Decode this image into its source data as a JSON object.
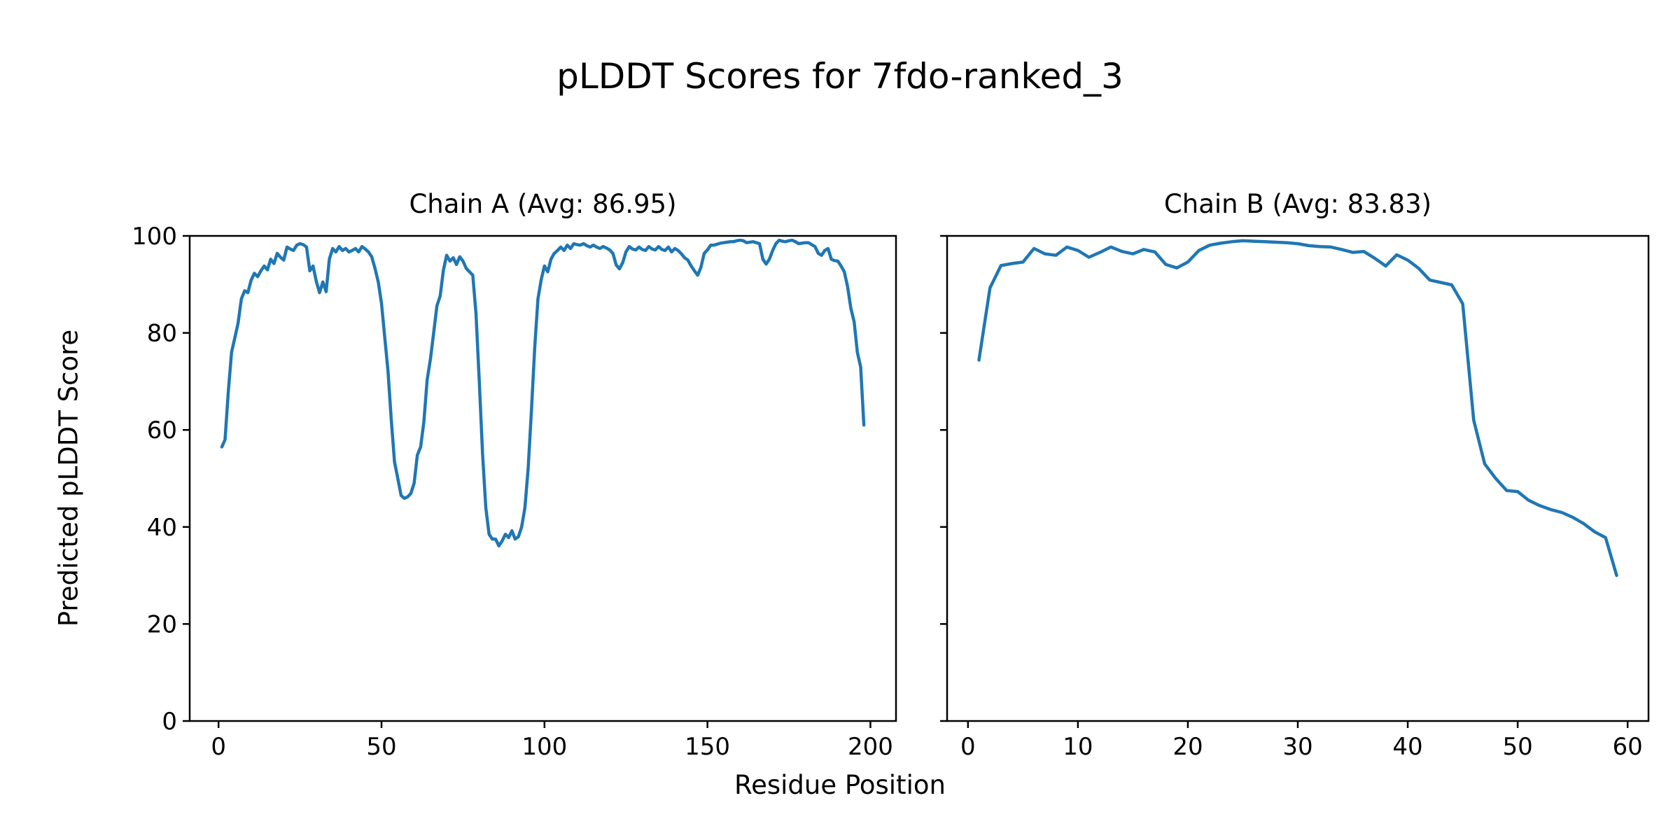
{
  "figure": {
    "suptitle": "pLDDT Scores for 7fdo-ranked_3",
    "xlabel": "Residue Position",
    "ylabel": "Predicted pLDDT Score",
    "line_color": "#1f77b4",
    "axis_color": "#000000",
    "background_color": "#ffffff"
  },
  "chart_data": [
    {
      "type": "line",
      "title": "Chain A (Avg: 86.95)",
      "avg_label": "86.95",
      "x_start": 1,
      "xlim": [
        -8.85,
        207.85
      ],
      "ylim": [
        0,
        100
      ],
      "xticks": [
        0,
        50,
        100,
        150,
        200
      ],
      "yticks": [
        0,
        20,
        40,
        60,
        80,
        100
      ],
      "show_ytick_labels": true,
      "grid": false,
      "legend": "none",
      "values": [
        56.5,
        58.0,
        68.0,
        76.0,
        79.0,
        82.0,
        87.0,
        88.7,
        88.3,
        90.9,
        92.3,
        91.6,
        92.8,
        93.8,
        93.0,
        95.2,
        94.3,
        96.4,
        95.6,
        95.0,
        97.7,
        97.3,
        97.0,
        98.1,
        98.4,
        98.2,
        97.7,
        92.8,
        93.8,
        90.6,
        88.3,
        90.5,
        88.5,
        95.2,
        97.4,
        96.7,
        97.8,
        97.0,
        97.4,
        96.7,
        97.0,
        97.4,
        96.7,
        97.8,
        97.3,
        96.7,
        95.7,
        93.3,
        90.5,
        86.1,
        79.0,
        72.1,
        62.0,
        53.4,
        50.0,
        46.5,
        45.9,
        46.2,
        46.9,
        49.0,
        54.8,
        56.5,
        61.6,
        70.3,
        74.6,
        80.0,
        85.6,
        87.6,
        93.0,
        96.0,
        94.8,
        95.5,
        94.1,
        95.7,
        94.8,
        93.3,
        92.6,
        91.9,
        84.0,
        70.0,
        55.0,
        44.0,
        38.5,
        37.5,
        37.5,
        36.1,
        37.1,
        38.5,
        37.8,
        39.2,
        37.5,
        38.0,
        40.0,
        44.0,
        52.0,
        64.0,
        77.0,
        87.0,
        91.0,
        93.8,
        92.6,
        95.2,
        96.4,
        97.0,
        97.7,
        97.0,
        98.1,
        97.4,
        98.4,
        98.2,
        98.1,
        98.4,
        98.0,
        97.7,
        98.1,
        97.7,
        97.4,
        97.8,
        97.5,
        97.1,
        96.4,
        94.0,
        93.2,
        94.5,
        96.7,
        97.8,
        97.3,
        97.1,
        97.7,
        97.2,
        97.0,
        97.8,
        97.3,
        97.1,
        97.8,
        97.2,
        97.0,
        97.7,
        96.7,
        97.4,
        97.0,
        96.3,
        95.5,
        95.0,
        93.8,
        92.8,
        91.9,
        93.5,
        96.4,
        97.1,
        98.1,
        98.1,
        98.3,
        98.5,
        98.6,
        98.7,
        98.8,
        98.8,
        99.0,
        99.1,
        99.0,
        98.6,
        98.7,
        98.8,
        98.6,
        98.4,
        95.2,
        94.2,
        95.2,
        97.0,
        98.4,
        99.1,
        98.9,
        98.8,
        99.0,
        99.1,
        98.8,
        98.4,
        98.5,
        98.6,
        98.6,
        98.2,
        97.8,
        96.4,
        96.0,
        97.0,
        97.4,
        95.2,
        94.9,
        94.8,
        93.8,
        92.6,
        89.5,
        85.1,
        82.3,
        76.0,
        73.0,
        61.0
      ]
    },
    {
      "type": "line",
      "title": "Chain B (Avg: 83.83)",
      "avg_label": "83.83",
      "x_start": 1,
      "xlim": [
        -1.9,
        61.9
      ],
      "ylim": [
        0,
        100
      ],
      "xticks": [
        0,
        10,
        20,
        30,
        40,
        50,
        60
      ],
      "yticks": [
        0,
        20,
        40,
        60,
        80,
        100
      ],
      "show_ytick_labels": false,
      "grid": false,
      "legend": "none",
      "values": [
        74.4,
        89.3,
        93.9,
        94.3,
        94.6,
        97.4,
        96.3,
        96.0,
        97.7,
        97.0,
        95.6,
        96.6,
        97.7,
        96.8,
        96.3,
        97.2,
        96.7,
        94.1,
        93.4,
        94.6,
        97.0,
        98.1,
        98.5,
        98.8,
        99.0,
        98.9,
        98.8,
        98.7,
        98.6,
        98.4,
        98.0,
        97.8,
        97.7,
        97.2,
        96.6,
        96.8,
        95.4,
        93.8,
        96.1,
        95.0,
        93.3,
        90.9,
        90.4,
        89.9,
        86.0,
        62.0,
        53.0,
        50.0,
        47.5,
        47.3,
        45.5,
        44.4,
        43.6,
        43.0,
        42.0,
        40.7,
        39.0,
        37.8,
        30.0
      ]
    }
  ]
}
